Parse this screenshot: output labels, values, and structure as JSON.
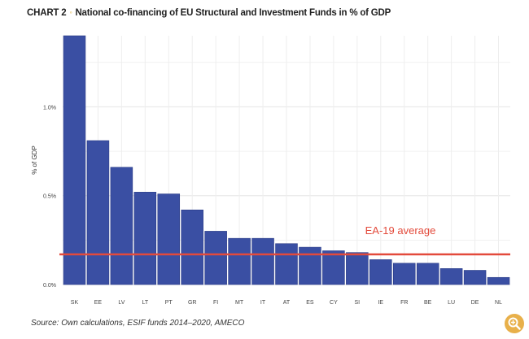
{
  "header": {
    "chart_number": "CHART 2",
    "separator": "◦",
    "title": "National co-financing of EU Structural and Investment Funds in % of GDP"
  },
  "chart_data": {
    "type": "bar",
    "categories": [
      "SK",
      "EE",
      "LV",
      "LT",
      "PT",
      "GR",
      "FI",
      "MT",
      "IT",
      "AT",
      "ES",
      "CY",
      "SI",
      "IE",
      "FR",
      "BE",
      "LU",
      "DE",
      "NL"
    ],
    "values": [
      1.4,
      0.81,
      0.66,
      0.52,
      0.51,
      0.42,
      0.3,
      0.26,
      0.26,
      0.23,
      0.21,
      0.19,
      0.18,
      0.14,
      0.12,
      0.12,
      0.09,
      0.08,
      0.04
    ],
    "ylabel": "% of GDP",
    "yticks": [
      0,
      0.5,
      1.0
    ],
    "ytick_labels": [
      "0.0%",
      "0.5%",
      "1.0%"
    ],
    "ylim": [
      0,
      1.4
    ],
    "grid": true,
    "bar_color": "#3a4fa3",
    "reference_line": {
      "label": "EA-19 average",
      "value": 0.17,
      "color": "#e34a3b"
    }
  },
  "footer": {
    "source": "Source: Own calculations, ESIF funds 2014–2020, AMECO",
    "zoom_icon": "zoom-icon",
    "accent_color": "#e8b04a"
  }
}
